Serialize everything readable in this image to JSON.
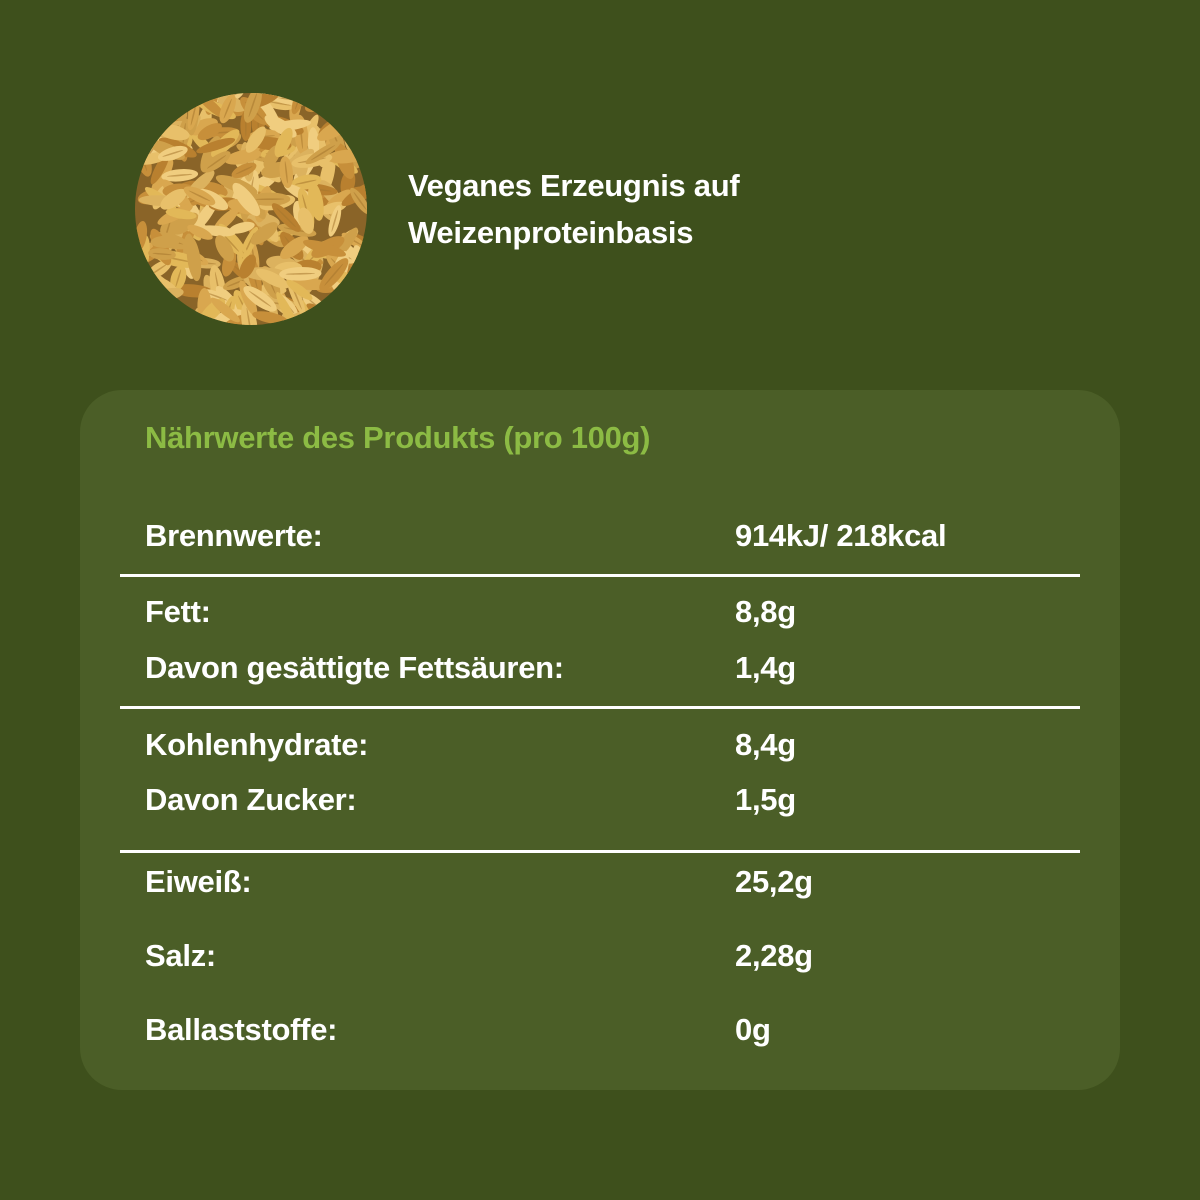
{
  "header": {
    "image": "wheat-grains",
    "tagline_line1": "Veganes Erzeugnis auf",
    "tagline_line2": "Weizenproteinbasis"
  },
  "nutrition": {
    "title": "Nährwerte des Produkts (pro 100g)",
    "groups": [
      {
        "rows": [
          {
            "label": "Brennwerte:",
            "value": "914kJ/ 218kcal"
          }
        ]
      },
      {
        "rows": [
          {
            "label": "Fett:",
            "value": "8,8g"
          },
          {
            "label": "Davon gesättigte Fettsäuren:",
            "value": "1,4g"
          }
        ]
      },
      {
        "rows": [
          {
            "label": "Kohlenhydrate:",
            "value": "8,4g"
          },
          {
            "label": "Davon Zucker:",
            "value": "1,5g"
          }
        ]
      },
      {
        "rows": [
          {
            "label": "Eiweiß:",
            "value": "25,2g"
          },
          {
            "label": "Salz:",
            "value": "2,28g"
          },
          {
            "label": "Ballaststoffe:",
            "value": "0g"
          }
        ]
      }
    ]
  },
  "colors": {
    "background": "#3e501c",
    "panel": "#4b5e27",
    "accent_green": "#8cbb44",
    "text": "#ffffff"
  }
}
